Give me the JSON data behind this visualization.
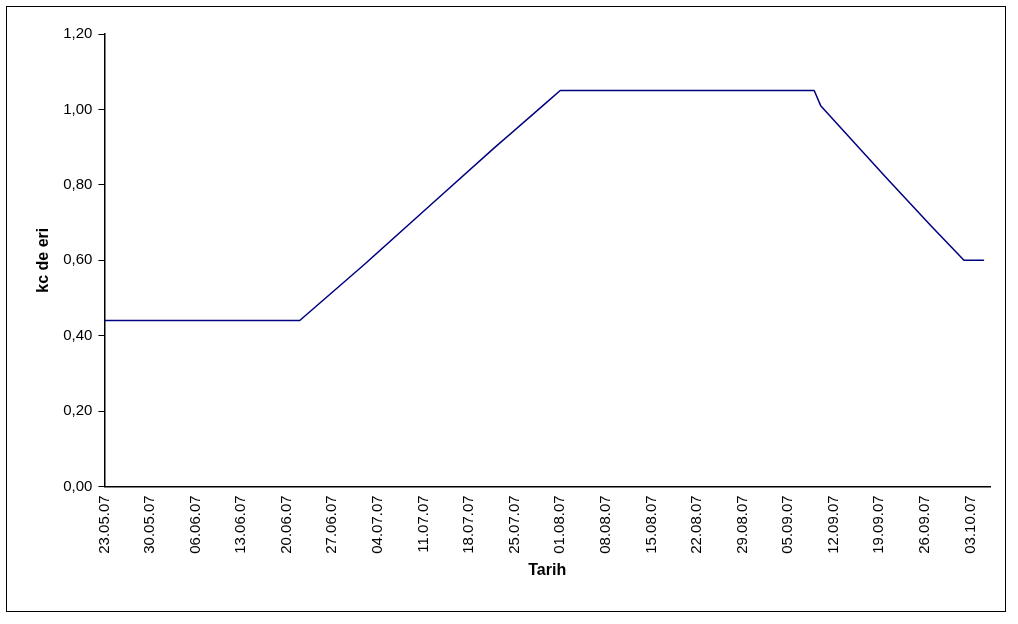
{
  "chart_data": {
    "type": "line",
    "xlabel": "Tarih",
    "ylabel": "kc de eri",
    "x": [
      "--05-23",
      "--06-22",
      "--07-02",
      "--07-12",
      "--07-22",
      "--07-30",
      "--08-01",
      "--09-09",
      "--09-10",
      "--09-20",
      "--09-27",
      "--10-02",
      "--10-05"
    ],
    "series": [
      {
        "color": "#000080",
        "values": [
          0.44,
          0.44,
          0.59,
          0.745,
          0.9,
          1.02,
          1.05,
          1.05,
          1.01,
          0.82,
          0.69,
          0.6,
          0.6
        ]
      }
    ],
    "xlim": [
      "--05-23",
      "--10-06"
    ],
    "xticks": [
      {
        "value": "--05-23",
        "label": "23.05.07"
      },
      {
        "value": "--05-30",
        "label": "30.05.07"
      },
      {
        "value": "--06-06",
        "label": "06.06.07"
      },
      {
        "value": "--06-13",
        "label": "13.06.07"
      },
      {
        "value": "--06-20",
        "label": "20.06.07"
      },
      {
        "value": "--06-27",
        "label": "27.06.07"
      },
      {
        "value": "--07-04",
        "label": "04.07.07"
      },
      {
        "value": "--07-11",
        "label": "11.07.07"
      },
      {
        "value": "--07-18",
        "label": "18.07.07"
      },
      {
        "value": "--07-25",
        "label": "25.07.07"
      },
      {
        "value": "--08-01",
        "label": "01.08.07"
      },
      {
        "value": "--08-08",
        "label": "08.08.07"
      },
      {
        "value": "--08-15",
        "label": "15.08.07"
      },
      {
        "value": "--08-22",
        "label": "22.08.07"
      },
      {
        "value": "--08-29",
        "label": "29.08.07"
      },
      {
        "value": "--09-05",
        "label": "05.09.07"
      },
      {
        "value": "--09-12",
        "label": "12.09.07"
      },
      {
        "value": "--09-19",
        "label": "19.09.07"
      },
      {
        "value": "--09-26",
        "label": "26.09.07"
      },
      {
        "value": "--10-03",
        "label": "03.10.07"
      }
    ],
    "ylim": [
      0,
      1.2
    ],
    "yticks": [
      {
        "value": 0,
        "label": "0,00"
      },
      {
        "value": 0.2,
        "label": "0,20"
      },
      {
        "value": 0.4,
        "label": "0,40"
      },
      {
        "value": 0.6,
        "label": "0,60"
      },
      {
        "value": 0.8,
        "label": "0,80"
      },
      {
        "value": 1.0,
        "label": "1,00"
      },
      {
        "value": 1.2,
        "label": "1,20"
      }
    ],
    "grid": false,
    "legend": false,
    "marker": "none",
    "line_style": "solid"
  }
}
